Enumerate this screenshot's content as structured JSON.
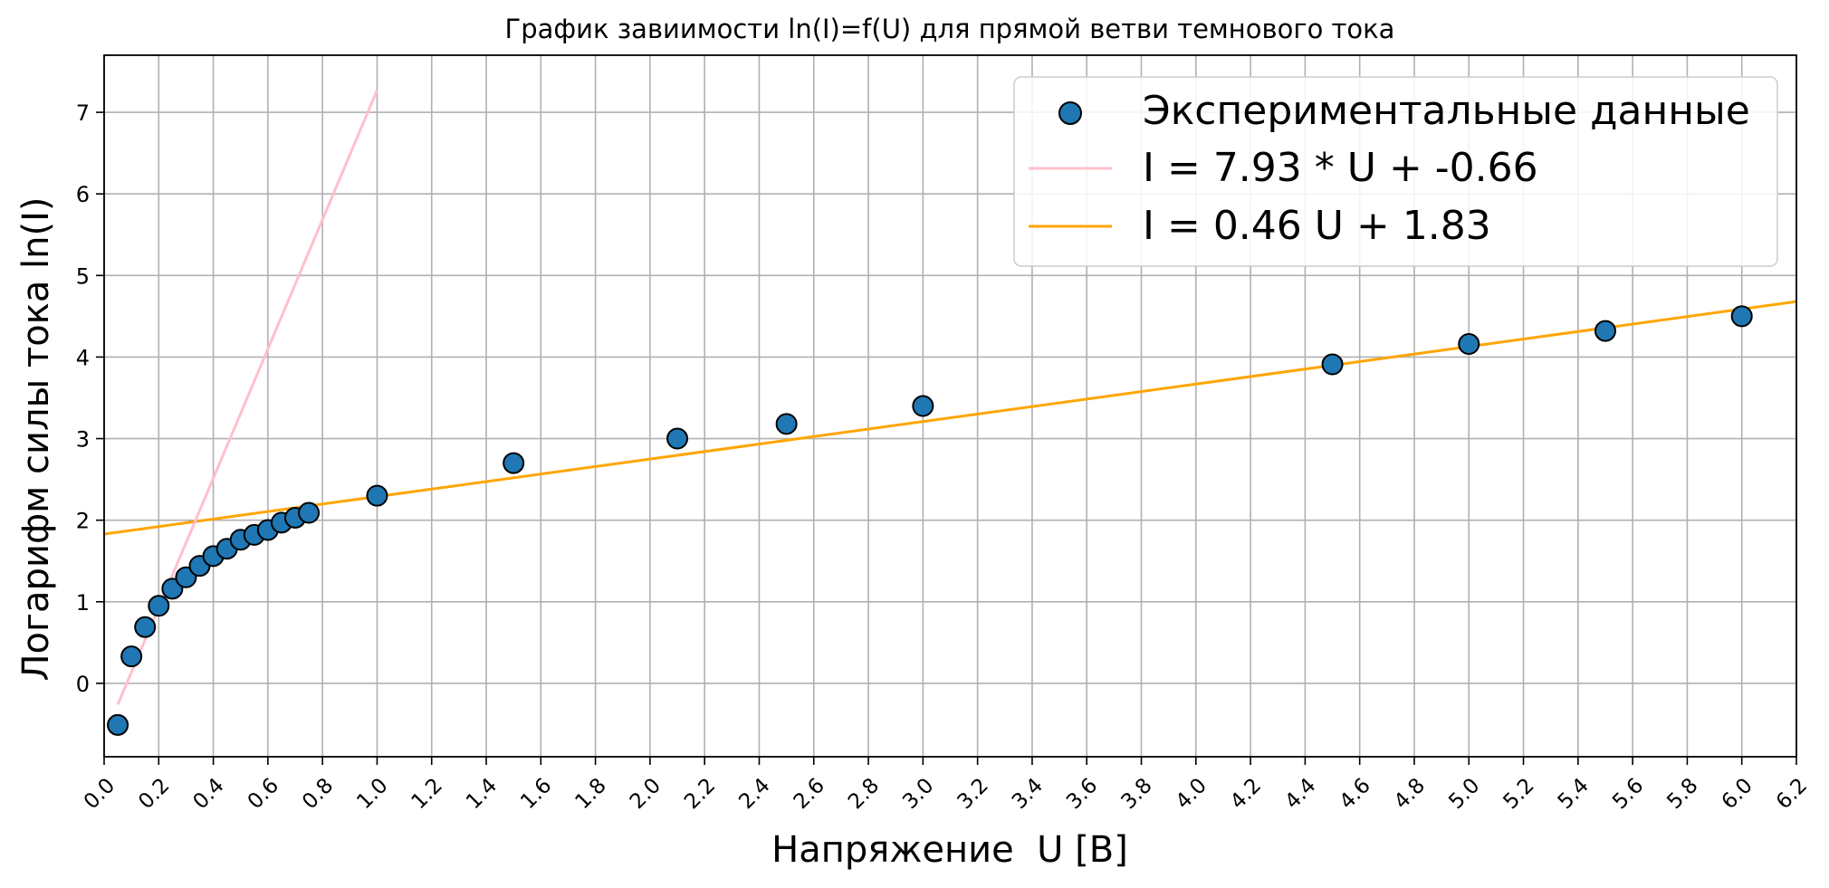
{
  "chart_data": {
    "type": "scatter",
    "title": "График завиимости ln(I)=f(U) для прямой ветви темнового тока",
    "xlabel": "Напряжение  U [В]",
    "ylabel": "Логарифм силы тока ln(I)",
    "xlim": [
      0.0,
      6.2
    ],
    "ylim": [
      -0.9,
      7.7
    ],
    "xticks": [
      0.0,
      0.2,
      0.4,
      0.6,
      0.8,
      1.0,
      1.2,
      1.4,
      1.6,
      1.8,
      2.0,
      2.2,
      2.4,
      2.6,
      2.8,
      3.0,
      3.2,
      3.4,
      3.6,
      3.8,
      4.0,
      4.2,
      4.4,
      4.6,
      4.8,
      5.0,
      5.2,
      5.4,
      5.6,
      5.8,
      6.0,
      6.2
    ],
    "xtick_labels": [
      "0.0",
      "0.2",
      "0.4",
      "0.6",
      "0.8",
      "1.0",
      "1.2",
      "1.4",
      "1.6",
      "1.8",
      "2.0",
      "2.2",
      "2.4",
      "2.6",
      "2.8",
      "3.0",
      "3.2",
      "3.4",
      "3.6",
      "3.8",
      "4.0",
      "4.2",
      "4.4",
      "4.6",
      "4.8",
      "5.0",
      "5.2",
      "5.4",
      "5.6",
      "5.8",
      "6.0",
      "6.2"
    ],
    "yticks": [
      0,
      1,
      2,
      3,
      4,
      5,
      6,
      7
    ],
    "ytick_labels": [
      "0",
      "1",
      "2",
      "3",
      "4",
      "5",
      "6",
      "7"
    ],
    "grid": true,
    "legend_position": "top-right",
    "series": [
      {
        "name": "Экспериментальные данные",
        "kind": "scatter",
        "color": "#1f77b4",
        "edge_color": "#000000",
        "x": [
          0.05,
          0.1,
          0.15,
          0.2,
          0.25,
          0.3,
          0.35,
          0.4,
          0.45,
          0.5,
          0.55,
          0.6,
          0.65,
          0.7,
          0.75,
          1.0,
          1.5,
          2.1,
          2.5,
          3.0,
          4.5,
          5.0,
          5.5,
          6.0
        ],
        "y": [
          -0.51,
          0.33,
          0.69,
          0.95,
          1.16,
          1.3,
          1.44,
          1.56,
          1.65,
          1.76,
          1.82,
          1.88,
          1.97,
          2.03,
          2.09,
          2.3,
          2.7,
          3.0,
          3.18,
          3.4,
          3.91,
          4.16,
          4.32,
          4.5
        ]
      },
      {
        "name": "I = 7.93 * U + -0.66",
        "kind": "line",
        "color": "#ffc0cb",
        "x": [
          0.05,
          1.0
        ],
        "y": [
          -0.26,
          7.27
        ]
      },
      {
        "name": "I = 0.46 U + 1.83",
        "kind": "line",
        "color": "#ffa500",
        "x": [
          0.0,
          6.2
        ],
        "y": [
          1.83,
          4.68
        ]
      }
    ]
  }
}
